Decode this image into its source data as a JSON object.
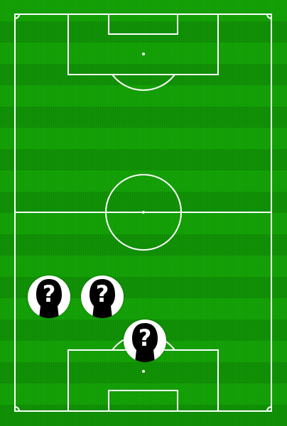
{
  "pitch": {
    "line_color": "#ffffff",
    "grass_color": "#2f8a1b"
  },
  "player_slots": [
    {
      "id": "left-back",
      "icon": "unknown-player-icon",
      "symbol": "?"
    },
    {
      "id": "center-back",
      "icon": "unknown-player-icon",
      "symbol": "?"
    },
    {
      "id": "goalkeeper",
      "icon": "unknown-player-icon",
      "symbol": "?"
    }
  ]
}
